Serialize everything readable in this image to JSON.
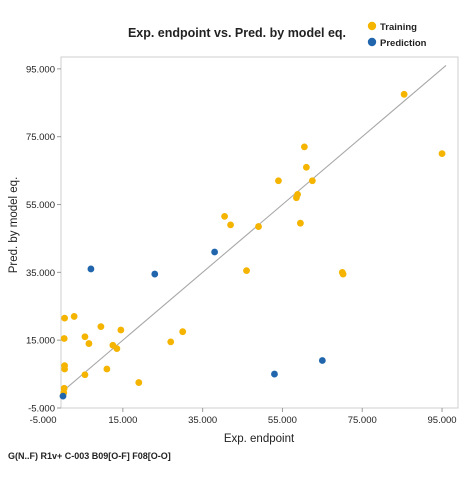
{
  "chart_data": {
    "type": "scatter",
    "title": "Exp. endpoint vs. Pred. by model eq.",
    "xlabel": "Exp. endpoint",
    "ylabel": "Pred. by model eq.",
    "footer": "G(N..F) R1v+ C-003 B09[O-F] F08[O-O]",
    "xlim": [
      -0.5,
      99
    ],
    "ylim": [
      -5,
      98.5
    ],
    "x_ticks": [
      {
        "value": -5,
        "label": "-5.000"
      },
      {
        "value": 15,
        "label": "15.000"
      },
      {
        "value": 35,
        "label": "35.000"
      },
      {
        "value": 55,
        "label": "55.000"
      },
      {
        "value": 75,
        "label": "75.000"
      },
      {
        "value": 95,
        "label": "95.000"
      }
    ],
    "y_ticks": [
      {
        "value": -5,
        "label": "-5.000"
      },
      {
        "value": 15,
        "label": "15.000"
      },
      {
        "value": 35,
        "label": "35.000"
      },
      {
        "value": 55,
        "label": "55.000"
      },
      {
        "value": 75,
        "label": "75.000"
      },
      {
        "value": 95,
        "label": "95.000"
      }
    ],
    "identity_line": [
      [
        0,
        0
      ],
      [
        96,
        96
      ]
    ],
    "legend_position": "top-right",
    "series": [
      {
        "name": "Training",
        "color": "#F4B400",
        "points": [
          [
            0.2,
            -0.5
          ],
          [
            0.3,
            0.8
          ],
          [
            0.4,
            6.5
          ],
          [
            0.4,
            7.5
          ],
          [
            0.3,
            15.5
          ],
          [
            0.4,
            21.5
          ],
          [
            2.8,
            22
          ],
          [
            5.5,
            4.8
          ],
          [
            5.5,
            16
          ],
          [
            6.5,
            14
          ],
          [
            9.5,
            19
          ],
          [
            11,
            6.5
          ],
          [
            12.5,
            13.5
          ],
          [
            13.5,
            12.5
          ],
          [
            14.5,
            18
          ],
          [
            19,
            2.5
          ],
          [
            27,
            14.5
          ],
          [
            30,
            17.5
          ],
          [
            40.5,
            51.5
          ],
          [
            42,
            49
          ],
          [
            46,
            35.5
          ],
          [
            49,
            48.5
          ],
          [
            54,
            62
          ],
          [
            58.5,
            57
          ],
          [
            58.8,
            58
          ],
          [
            59.5,
            49.5
          ],
          [
            60.5,
            72
          ],
          [
            61,
            66
          ],
          [
            62.5,
            62
          ],
          [
            70,
            35
          ],
          [
            70.2,
            34.5
          ],
          [
            85.5,
            87.5
          ],
          [
            95,
            70
          ]
        ]
      },
      {
        "name": "Prediction",
        "color": "#2166AC",
        "points": [
          [
            0,
            -1.5
          ],
          [
            7,
            36
          ],
          [
            23,
            34.5
          ],
          [
            38,
            41
          ],
          [
            53,
            5
          ],
          [
            65,
            9
          ]
        ]
      }
    ]
  }
}
